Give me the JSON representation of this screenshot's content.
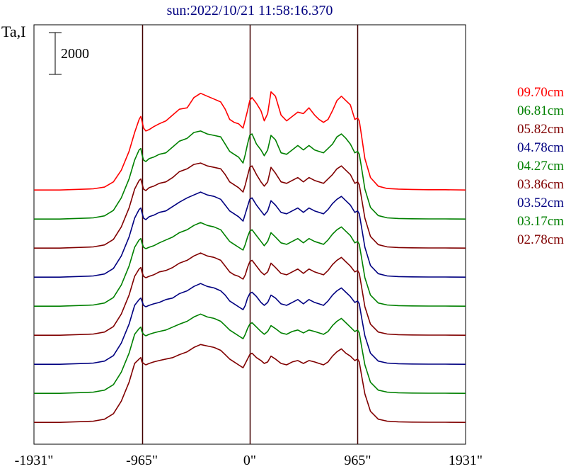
{
  "chart_data": {
    "type": "line",
    "title": "sun:2022/10/21 11:58:16.370",
    "ylabel": "Ta,I",
    "scale_bar_label": "2000",
    "x_tick_labels": [
      "-1931\"",
      "-965\"",
      "0\"",
      "965\"",
      "1931\""
    ],
    "x_ticks": [
      -1931,
      -965,
      0,
      965,
      1931
    ],
    "xlim": [
      -1931,
      1931
    ],
    "vertical_lines": [
      -965,
      0,
      965
    ],
    "y_unit": "Ta (arbitrary, stacked with offsets)",
    "series_offset_step": 1000,
    "x": [
      -1931,
      -1700,
      -1400,
      -1300,
      -1220,
      -1150,
      -1080,
      -1030,
      -990,
      -975,
      -965,
      -950,
      -930,
      -900,
      -860,
      -810,
      -750,
      -690,
      -630,
      -560,
      -500,
      -440,
      -380,
      -320,
      -260,
      -220,
      -180,
      -140,
      -100,
      -60,
      -40,
      -20,
      0,
      20,
      60,
      100,
      130,
      160,
      190,
      230,
      280,
      330,
      380,
      430,
      480,
      530,
      580,
      620,
      660,
      700,
      740,
      780,
      820,
      860,
      900,
      940,
      965,
      980,
      1000,
      1030,
      1080,
      1150,
      1230,
      1330,
      1450,
      1600,
      1750,
      1931
    ],
    "series": [
      {
        "name": "09.70cm",
        "color": "#ff0000",
        "baseline": 7000,
        "values": [
          20,
          20,
          60,
          120,
          300,
          700,
          1350,
          2000,
          2450,
          2550,
          2400,
          2150,
          2050,
          2100,
          2200,
          2300,
          2400,
          2600,
          2800,
          2850,
          3200,
          3350,
          3250,
          3150,
          3050,
          2800,
          2450,
          2350,
          2300,
          2150,
          2450,
          2750,
          3100,
          3200,
          3000,
          2750,
          2400,
          2650,
          3400,
          3250,
          2600,
          2400,
          2550,
          2700,
          2650,
          2850,
          2600,
          2450,
          2350,
          2450,
          2750,
          3100,
          3250,
          3100,
          2950,
          2450,
          2500,
          2400,
          1900,
          1100,
          450,
          150,
          70,
          50,
          40,
          30,
          30,
          20
        ]
      },
      {
        "name": "06.81cm",
        "color": "#008000",
        "baseline": 6000,
        "values": [
          20,
          20,
          60,
          130,
          320,
          750,
          1400,
          2050,
          2400,
          2450,
          2250,
          2050,
          2000,
          2100,
          2150,
          2250,
          2300,
          2500,
          2700,
          2800,
          3000,
          3050,
          2950,
          2900,
          2850,
          2600,
          2350,
          2250,
          2150,
          1950,
          2250,
          2600,
          2900,
          2950,
          2600,
          2400,
          2200,
          2400,
          2900,
          2750,
          2300,
          2250,
          2400,
          2550,
          2400,
          2550,
          2400,
          2350,
          2300,
          2450,
          2600,
          2850,
          2950,
          2800,
          2600,
          2300,
          2350,
          2250,
          1800,
          1050,
          420,
          140,
          60,
          40,
          30,
          25,
          25,
          20
        ]
      },
      {
        "name": "05.82cm",
        "color": "#800000",
        "baseline": 5000,
        "values": [
          20,
          20,
          60,
          130,
          320,
          750,
          1400,
          2050,
          2350,
          2400,
          2250,
          2050,
          2000,
          2100,
          2150,
          2250,
          2300,
          2450,
          2650,
          2750,
          2900,
          2950,
          2850,
          2800,
          2750,
          2550,
          2300,
          2200,
          2100,
          1950,
          2200,
          2500,
          2800,
          2850,
          2550,
          2300,
          2150,
          2300,
          2800,
          2600,
          2300,
          2250,
          2350,
          2450,
          2300,
          2450,
          2350,
          2300,
          2250,
          2400,
          2550,
          2750,
          2850,
          2700,
          2550,
          2250,
          2300,
          2200,
          1750,
          1050,
          420,
          140,
          60,
          40,
          30,
          25,
          25,
          20
        ]
      },
      {
        "name": "04.78cm",
        "color": "#000080",
        "baseline": 4000,
        "values": [
          20,
          20,
          60,
          130,
          320,
          750,
          1400,
          2050,
          2350,
          2400,
          2250,
          2050,
          2000,
          2100,
          2150,
          2250,
          2300,
          2450,
          2600,
          2750,
          2850,
          2950,
          2850,
          2800,
          2700,
          2500,
          2300,
          2200,
          2100,
          1950,
          2200,
          2450,
          2700,
          2750,
          2500,
          2300,
          2150,
          2300,
          2650,
          2500,
          2250,
          2200,
          2300,
          2400,
          2250,
          2400,
          2300,
          2250,
          2200,
          2350,
          2550,
          2700,
          2800,
          2650,
          2500,
          2250,
          2300,
          2200,
          1750,
          1050,
          420,
          140,
          60,
          40,
          30,
          25,
          25,
          20
        ]
      },
      {
        "name": "04.27cm",
        "color": "#008000",
        "baseline": 3000,
        "values": [
          20,
          20,
          60,
          130,
          320,
          750,
          1400,
          2050,
          2300,
          2350,
          2200,
          2050,
          2000,
          2050,
          2100,
          2200,
          2300,
          2400,
          2550,
          2650,
          2800,
          2900,
          2800,
          2750,
          2650,
          2450,
          2250,
          2150,
          2050,
          1950,
          2150,
          2400,
          2600,
          2650,
          2450,
          2250,
          2100,
          2250,
          2550,
          2400,
          2200,
          2150,
          2250,
          2350,
          2200,
          2350,
          2250,
          2200,
          2150,
          2300,
          2500,
          2650,
          2750,
          2600,
          2450,
          2200,
          2250,
          2150,
          1700,
          1000,
          400,
          130,
          60,
          40,
          30,
          25,
          25,
          20
        ]
      },
      {
        "name": "03.86cm",
        "color": "#800000",
        "baseline": 2000,
        "values": [
          20,
          20,
          60,
          130,
          320,
          750,
          1400,
          2050,
          2300,
          2350,
          2200,
          2050,
          2000,
          2050,
          2100,
          2200,
          2250,
          2350,
          2500,
          2600,
          2750,
          2850,
          2750,
          2700,
          2600,
          2400,
          2200,
          2100,
          2050,
          1950,
          2100,
          2350,
          2550,
          2600,
          2400,
          2200,
          2100,
          2200,
          2500,
          2350,
          2150,
          2100,
          2200,
          2300,
          2150,
          2300,
          2200,
          2150,
          2100,
          2250,
          2450,
          2600,
          2700,
          2550,
          2400,
          2200,
          2250,
          2150,
          1700,
          1000,
          400,
          130,
          60,
          40,
          30,
          25,
          25,
          20
        ]
      },
      {
        "name": "03.52cm",
        "color": "#000080",
        "baseline": 1000,
        "values": [
          20,
          20,
          60,
          130,
          320,
          750,
          1400,
          2050,
          2250,
          2300,
          2200,
          2050,
          2000,
          2050,
          2100,
          2150,
          2250,
          2300,
          2450,
          2550,
          2700,
          2800,
          2700,
          2650,
          2550,
          2400,
          2200,
          2100,
          2000,
          1900,
          2050,
          2300,
          2450,
          2500,
          2350,
          2150,
          2050,
          2150,
          2400,
          2300,
          2100,
          2050,
          2150,
          2250,
          2100,
          2250,
          2150,
          2100,
          2050,
          2200,
          2400,
          2550,
          2650,
          2500,
          2350,
          2150,
          2200,
          2100,
          1650,
          1000,
          400,
          130,
          60,
          40,
          30,
          25,
          25,
          20
        ]
      },
      {
        "name": "03.17cm",
        "color": "#008000",
        "baseline": 0,
        "values": [
          20,
          20,
          60,
          130,
          320,
          750,
          1400,
          2050,
          2250,
          2300,
          2150,
          2050,
          2000,
          2050,
          2100,
          2150,
          2200,
          2300,
          2400,
          2500,
          2650,
          2750,
          2650,
          2600,
          2500,
          2350,
          2200,
          2100,
          2000,
          1900,
          2050,
          2250,
          2400,
          2450,
          2300,
          2150,
          2050,
          2150,
          2350,
          2250,
          2100,
          2050,
          2150,
          2200,
          2100,
          2200,
          2150,
          2100,
          2050,
          2150,
          2350,
          2500,
          2600,
          2450,
          2300,
          2150,
          2200,
          2100,
          1650,
          1000,
          400,
          130,
          60,
          40,
          30,
          25,
          25,
          20
        ]
      },
      {
        "name": "02.78cm",
        "color": "#800000",
        "baseline": -1000,
        "values": [
          20,
          20,
          60,
          130,
          320,
          750,
          1400,
          2050,
          2200,
          2250,
          2100,
          2050,
          2000,
          2050,
          2100,
          2150,
          2200,
          2250,
          2350,
          2450,
          2600,
          2700,
          2650,
          2600,
          2500,
          2350,
          2200,
          2100,
          2000,
          1900,
          2050,
          2200,
          2350,
          2400,
          2250,
          2150,
          2050,
          2100,
          2300,
          2200,
          2050,
          2000,
          2100,
          2150,
          2050,
          2150,
          2100,
          2050,
          2000,
          2100,
          2300,
          2450,
          2550,
          2400,
          2300,
          2150,
          2200,
          2100,
          1650,
          1000,
          400,
          130,
          60,
          40,
          30,
          25,
          25,
          20
        ]
      }
    ]
  }
}
